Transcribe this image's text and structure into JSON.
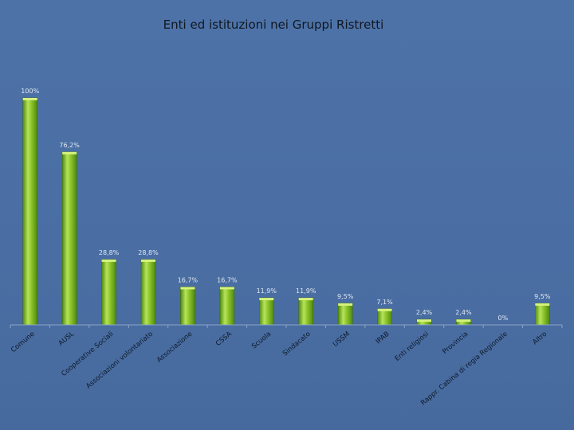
{
  "chart_data": {
    "type": "bar",
    "title": "Enti ed istituzioni nei Gruppi Ristretti",
    "xlabel": "",
    "ylabel": "",
    "ylim": [
      0,
      100
    ],
    "grid": false,
    "legend": "none",
    "categories": [
      "Comune",
      "AUSL",
      "Cooperative Sociali",
      "Associazioni volontariato",
      "Associazione",
      "CSSA",
      "Scuola",
      "Sindacato",
      "USSM",
      "IPAB",
      "Enti religiosi",
      "Provincia",
      "Rappr. Cabina di regia Regionale",
      "Altro"
    ],
    "values": [
      100,
      76.2,
      28.8,
      28.8,
      16.7,
      16.7,
      11.9,
      11.9,
      9.5,
      7.1,
      2.4,
      2.4,
      0,
      9.5
    ],
    "data_labels": [
      "100%",
      "76,2%",
      "28,8%",
      "28,8%",
      "16,7%",
      "16,7%",
      "11,9%",
      "11,9%",
      "9,5%",
      "7,1%",
      "2,4%",
      "2,4%",
      "0%",
      "9,5%"
    ],
    "colors": {
      "bar": "#7ab51d",
      "bar_light": "#b7e35a",
      "bar_dark": "#4f8a10",
      "axis": "#8aa4c6",
      "background": "#4a6fa5"
    }
  }
}
